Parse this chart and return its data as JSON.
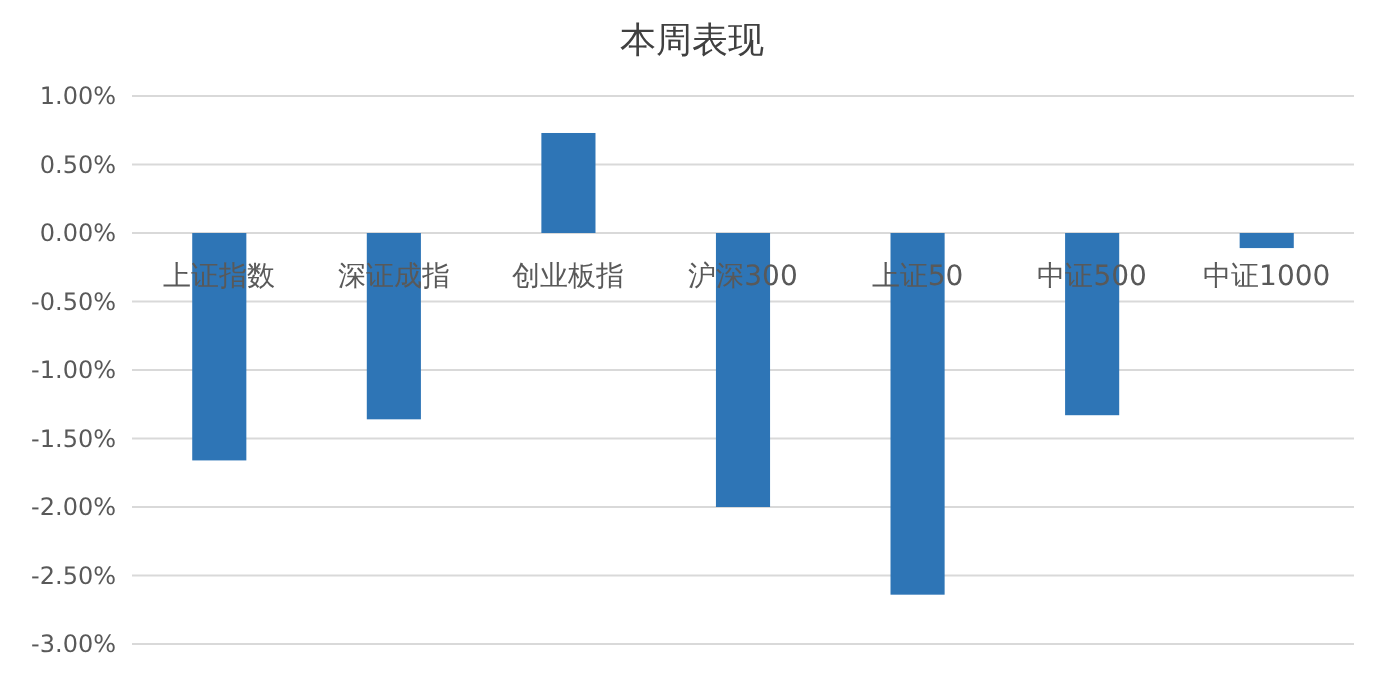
{
  "chart_data": {
    "type": "bar",
    "title": "本周表现",
    "categories": [
      "上证指数",
      "深证成指",
      "创业板指",
      "沪深300",
      "上证50",
      "中证500",
      "中证1000"
    ],
    "values": [
      -1.66,
      -1.36,
      0.73,
      -2.0,
      -2.64,
      -1.33,
      -0.11
    ],
    "color": "#2e75b6",
    "ylim": [
      -3,
      1
    ],
    "yticks": [
      {
        "value": -3,
        "label": "-3.00%"
      },
      {
        "value": -2.5,
        "label": "-2.50%"
      },
      {
        "value": -2,
        "label": "-2.00%"
      },
      {
        "value": -1.5,
        "label": "-1.50%"
      },
      {
        "value": -1,
        "label": "-1.00%"
      },
      {
        "value": -0.5,
        "label": "-0.50%"
      },
      {
        "value": 0,
        "label": "0.00%"
      },
      {
        "value": 0.5,
        "label": "0.50%"
      },
      {
        "value": 1,
        "label": "1.00%"
      }
    ],
    "grid": "y"
  }
}
